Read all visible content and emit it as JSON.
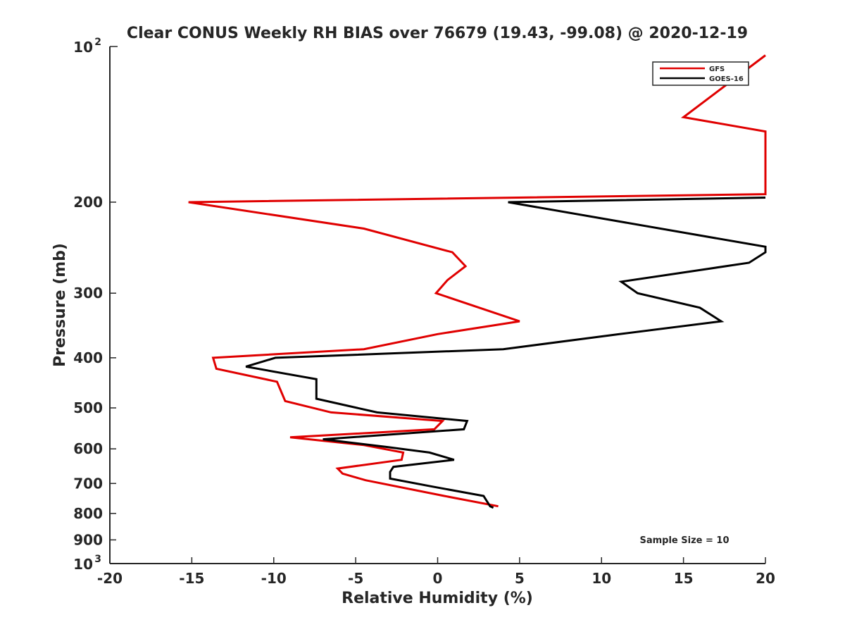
{
  "chart_data": {
    "type": "line",
    "title": "Clear CONUS Weekly RH BIAS over 76679 (19.43, -99.08) @ 2020-12-19",
    "xlabel": "Relative Humidity (%)",
    "ylabel": "Pressure (mb)",
    "xlim": [
      -20,
      20
    ],
    "ylim": [
      100,
      1000
    ],
    "y_scale": "log",
    "y_reversed": true,
    "grid": false,
    "legend_position": "top-right",
    "x_ticks": [
      -20,
      -15,
      -10,
      -5,
      0,
      5,
      10,
      15,
      20
    ],
    "y_ticks": [
      200,
      300,
      400,
      500,
      600,
      700,
      800,
      900
    ],
    "y_tick_labels": [
      "200",
      "300",
      "400",
      "500",
      "600",
      "700",
      "800",
      "900"
    ],
    "y_decade_ticks": [
      {
        "value": 100,
        "base": "10",
        "exp": "2"
      },
      {
        "value": 1000,
        "base": "10",
        "exp": "3"
      }
    ],
    "annotation": "Sample Size = 10",
    "series": [
      {
        "name": "GFS",
        "color": "#e00000",
        "points": [
          [
            20,
            104
          ],
          [
            15,
            137
          ],
          [
            20,
            146
          ],
          [
            20,
            193
          ],
          [
            -15.2,
            200
          ],
          [
            -4.5,
            225
          ],
          [
            0.9,
            250
          ],
          [
            1.7,
            266
          ],
          [
            0.6,
            283
          ],
          [
            -0.1,
            300
          ],
          [
            5,
            340
          ],
          [
            0,
            360
          ],
          [
            -4.5,
            385
          ],
          [
            -13.7,
            400
          ],
          [
            -13.5,
            420
          ],
          [
            -9.8,
            445
          ],
          [
            -9.3,
            485
          ],
          [
            -6.5,
            510
          ],
          [
            0.3,
            530
          ],
          [
            -0.2,
            550
          ],
          [
            -9,
            570
          ],
          [
            -4.5,
            590
          ],
          [
            -2.1,
            610
          ],
          [
            -2.2,
            630
          ],
          [
            -6.1,
            655
          ],
          [
            -5.8,
            670
          ],
          [
            -4.4,
            690
          ],
          [
            0.4,
            740
          ],
          [
            3.7,
            775
          ]
        ]
      },
      {
        "name": "GOES-16",
        "color": "#000000",
        "points": [
          [
            20,
            196
          ],
          [
            4.3,
            200
          ],
          [
            20,
            244
          ],
          [
            20,
            250
          ],
          [
            19,
            262
          ],
          [
            11.2,
            285
          ],
          [
            12.2,
            300
          ],
          [
            16,
            320
          ],
          [
            17.3,
            340
          ],
          [
            11.1,
            360
          ],
          [
            4,
            385
          ],
          [
            -9.9,
            400
          ],
          [
            -11.7,
            416
          ],
          [
            -7.4,
            440
          ],
          [
            -7.4,
            465
          ],
          [
            -7.4,
            480
          ],
          [
            -3.7,
            510
          ],
          [
            1.8,
            530
          ],
          [
            1.6,
            550
          ],
          [
            -7,
            575
          ],
          [
            -3.1,
            595
          ],
          [
            -0.5,
            610
          ],
          [
            1,
            630
          ],
          [
            -2.7,
            650
          ],
          [
            -2.9,
            665
          ],
          [
            -2.9,
            685
          ],
          [
            -0.3,
            710
          ],
          [
            2.8,
            740
          ],
          [
            3.2,
            775
          ],
          [
            3.4,
            780
          ]
        ]
      }
    ]
  }
}
